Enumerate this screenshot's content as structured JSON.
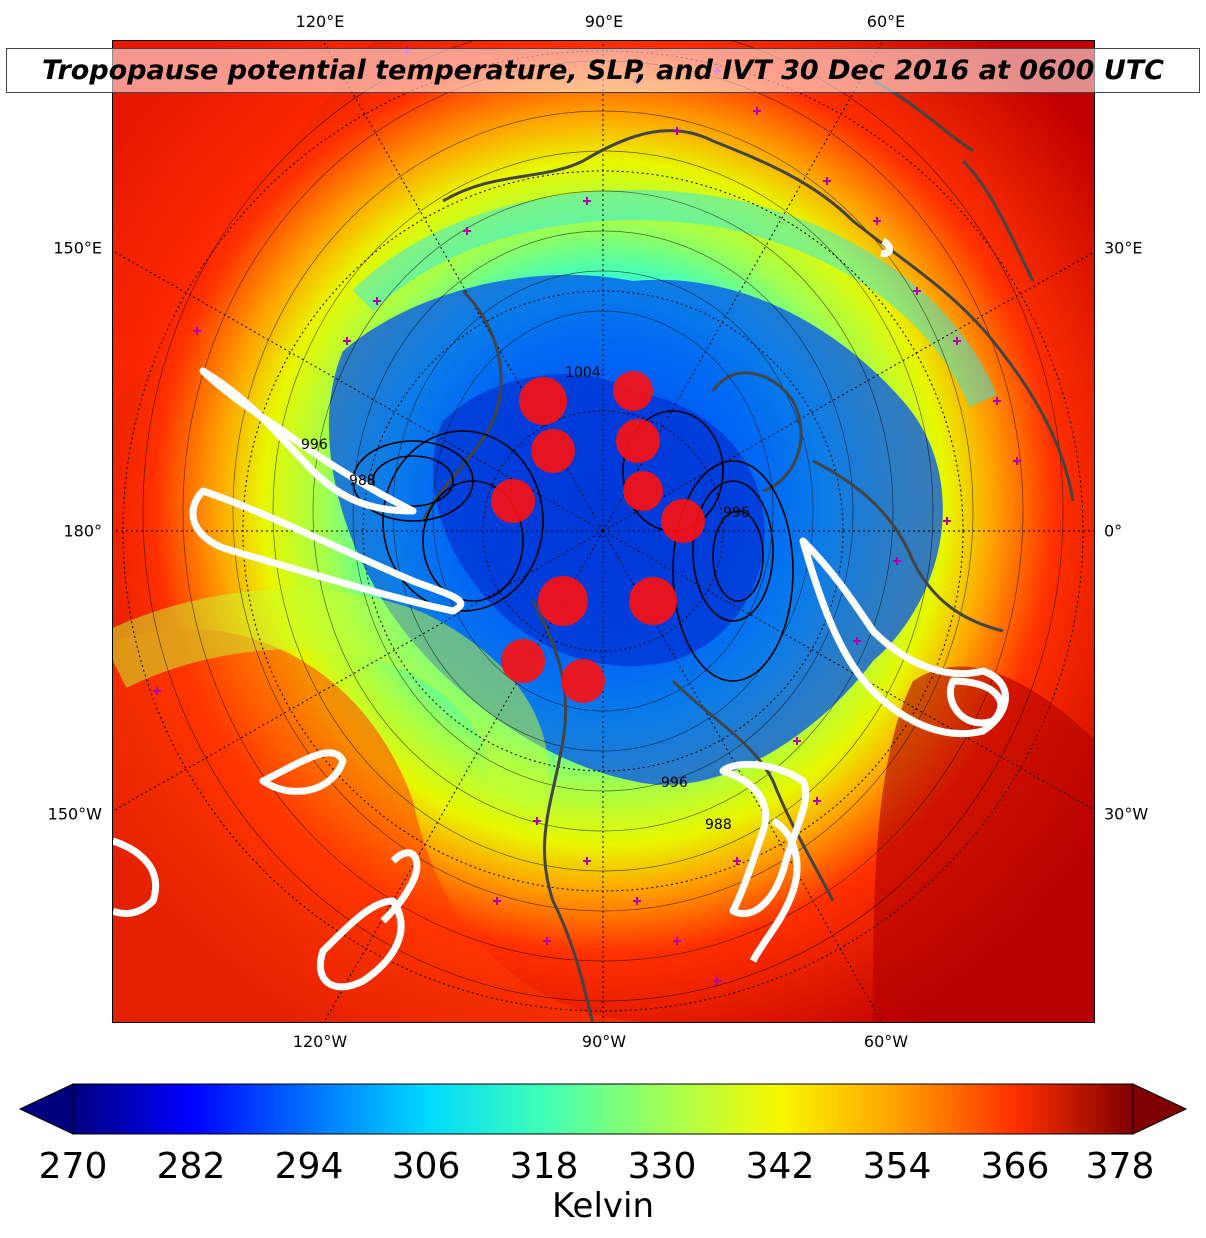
{
  "title": "Tropopause potential temperature, SLP, and IVT 30 Dec 2016 at 0600 UTC",
  "graticule_labels": {
    "top": [
      "120°E",
      "90°E",
      "60°E"
    ],
    "bottom": [
      "120°W",
      "90°W",
      "60°W"
    ],
    "left": [
      "150°E",
      "180°",
      "150°W"
    ],
    "right": [
      "30°E",
      "0°",
      "30°W"
    ]
  },
  "slp_contour_labels": [
    "996",
    "988",
    "1004",
    "996",
    "988",
    "996"
  ],
  "colorbar": {
    "ticks": [
      "270",
      "282",
      "294",
      "306",
      "318",
      "330",
      "342",
      "354",
      "366",
      "378"
    ],
    "label": "Kelvin",
    "min": 270,
    "max": 378,
    "colors": [
      "#00007f",
      "#0000ff",
      "#0070ff",
      "#00d8ff",
      "#40ffb8",
      "#a0ff58",
      "#f8f800",
      "#ffa000",
      "#ff3000",
      "#7f0000"
    ]
  },
  "colors": {
    "ivt_contour": "#ffffff",
    "station_marker": "#b000b0",
    "coastline": "#444444",
    "slp_contour": "#000000"
  }
}
